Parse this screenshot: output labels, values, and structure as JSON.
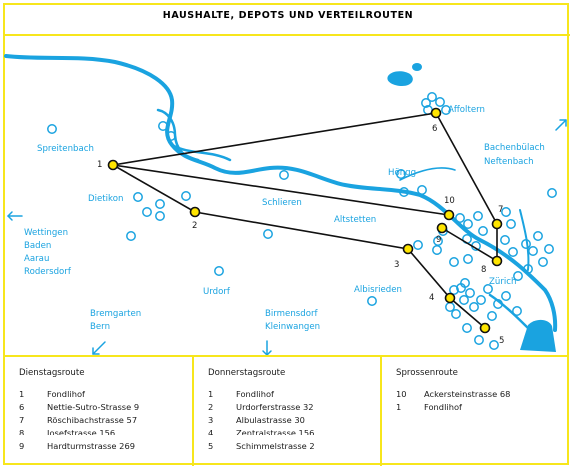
{
  "title": "HAUSHALTE, DEPOTS UND VERTEILROUTEN",
  "colors": {
    "frame": "#f7e61c",
    "river": "#1aa3e0",
    "stop_fill": "#ffe500",
    "route_line": "#111111",
    "place_label": "#1aa3e0",
    "text": "#1a1a1a"
  },
  "places": [
    {
      "id": "affoltern",
      "text": "Affoltern"
    },
    {
      "id": "spreitenbach",
      "text": "Spreitenbach"
    },
    {
      "id": "bachenbuelach",
      "text": "Bachenbülach"
    },
    {
      "id": "neftenbach",
      "text": "Neftenbach"
    },
    {
      "id": "dietikon",
      "text": "Dietikon"
    },
    {
      "id": "hoengg",
      "text": "Höngg"
    },
    {
      "id": "schlieren",
      "text": "Schlieren"
    },
    {
      "id": "altstetten",
      "text": "Altstetten"
    },
    {
      "id": "wettingen",
      "text": "Wettingen"
    },
    {
      "id": "baden",
      "text": "Baden"
    },
    {
      "id": "aarau",
      "text": "Aarau"
    },
    {
      "id": "rodersdorf",
      "text": "Rodersdorf"
    },
    {
      "id": "urdorf",
      "text": "Urdorf"
    },
    {
      "id": "albisrieden",
      "text": "Albisrieden"
    },
    {
      "id": "zuerich",
      "text": "Zürich"
    },
    {
      "id": "bremgarten",
      "text": "Bremgarten"
    },
    {
      "id": "bern",
      "text": "Bern"
    },
    {
      "id": "birmensdorf",
      "text": "Birmensdorf"
    },
    {
      "id": "kleinwangen",
      "text": "Kleinwangen"
    }
  ],
  "map_stops": [
    "1",
    "2",
    "3",
    "4",
    "5",
    "6",
    "7",
    "8",
    "9",
    "10"
  ],
  "direction_icons": [
    "arrow-left-icon",
    "arrow-up-right-icon",
    "arrow-down-left-icon",
    "arrow-down-icon"
  ],
  "routes": [
    {
      "name": "Dienstagsroute",
      "stops": [
        {
          "num": "1",
          "label": "Fondlihof"
        },
        {
          "num": "6",
          "label": "Nettie-Sutro-Strasse 9"
        },
        {
          "num": "7",
          "label": "Röschibachstrasse 57"
        },
        {
          "num": "8",
          "label": "Josefstrasse 156"
        },
        {
          "num": "9",
          "label": "Hardturmstrasse 269"
        }
      ]
    },
    {
      "name": "Donnerstagsroute",
      "stops": [
        {
          "num": "1",
          "label": "Fondlihof"
        },
        {
          "num": "2",
          "label": "Urdorferstrasse 32"
        },
        {
          "num": "3",
          "label": "Albulastrasse 30"
        },
        {
          "num": "4",
          "label": "Zentralstrasse 156"
        },
        {
          "num": "5",
          "label": "Schimmelstrasse 2"
        }
      ]
    },
    {
      "name": "Sprossenroute",
      "stops": [
        {
          "num": "10",
          "label": "Ackersteinstrasse 68"
        },
        {
          "num": "1",
          "label": "Fondlihof"
        }
      ]
    }
  ]
}
